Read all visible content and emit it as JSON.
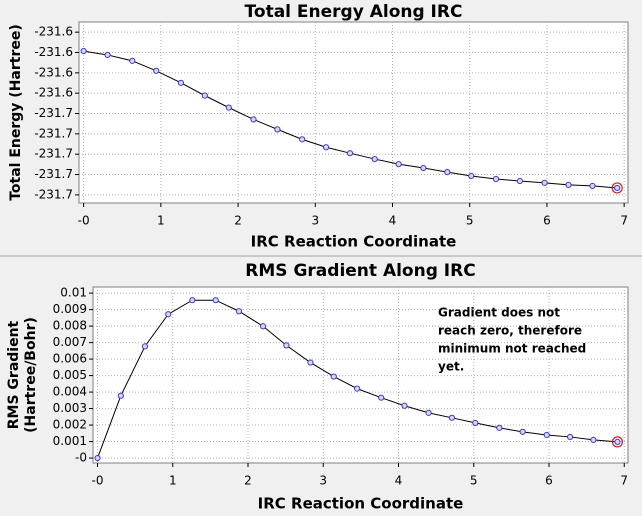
{
  "chart_data": [
    {
      "type": "line",
      "title": "Total Energy Along IRC",
      "xlabel": "IRC Reaction Coordinate",
      "ylabel": [
        "Total Energy (Hartree)"
      ],
      "x": [
        0,
        0.31,
        0.63,
        0.94,
        1.26,
        1.57,
        1.88,
        2.2,
        2.51,
        2.83,
        3.14,
        3.45,
        3.77,
        4.08,
        4.4,
        4.71,
        5.02,
        5.34,
        5.65,
        5.97,
        6.28,
        6.59,
        6.91
      ],
      "series": [
        {
          "color": "#000000",
          "marker_color": "#3a3ad0",
          "highlight_color": "#d02020",
          "values": [
            -231.6193,
            -231.6212,
            -231.6241,
            -231.629,
            -231.6349,
            -231.6412,
            -231.6471,
            -231.6529,
            -231.6578,
            -231.6627,
            -231.6666,
            -231.6695,
            -231.6724,
            -231.6749,
            -231.6768,
            -231.6788,
            -231.6807,
            -231.6822,
            -231.6832,
            -231.6841,
            -231.6851,
            -231.6856,
            -231.6866
          ]
        }
      ],
      "xlim": [
        -0.06,
        7.05
      ],
      "ylim": [
        -231.694,
        -231.605
      ],
      "xticks": [
        {
          "value": 0,
          "label": "-0"
        },
        1,
        2,
        3,
        4,
        5,
        6,
        7
      ],
      "yticks": [
        {
          "value": -231.61,
          "label": "-231.6"
        },
        {
          "value": -231.62,
          "label": "-231.6"
        },
        {
          "value": -231.63,
          "label": "-231.6"
        },
        {
          "value": -231.64,
          "label": "-231.6"
        },
        {
          "value": -231.65,
          "label": "-231.7"
        },
        {
          "value": -231.66,
          "label": "-231.7"
        },
        {
          "value": -231.67,
          "label": "-231.7"
        },
        {
          "value": -231.68,
          "label": "-231.7"
        },
        {
          "value": -231.69,
          "label": "-231.7"
        }
      ],
      "grid": true
    },
    {
      "type": "line",
      "title": "RMS Gradient Along IRC",
      "xlabel": "IRC Reaction Coordinate",
      "ylabel": [
        "RMS Gradient",
        "(Hartree/Bohr)"
      ],
      "annotation": [
        "Gradient does not",
        "reach zero, therefore",
        "minimum not reached",
        "yet."
      ],
      "x": [
        0,
        0.31,
        0.63,
        0.94,
        1.26,
        1.57,
        1.88,
        2.2,
        2.51,
        2.83,
        3.14,
        3.45,
        3.77,
        4.08,
        4.4,
        4.71,
        5.02,
        5.34,
        5.65,
        5.97,
        6.28,
        6.59,
        6.91
      ],
      "series": [
        {
          "color": "#000000",
          "marker_color": "#3a3ad0",
          "highlight_color": "#d02020",
          "values": [
            0,
            0.00378,
            0.00677,
            0.00872,
            0.00957,
            0.00957,
            0.0089,
            0.00799,
            0.00683,
            0.00579,
            0.00494,
            0.00421,
            0.00366,
            0.00317,
            0.00274,
            0.00244,
            0.00213,
            0.00183,
            0.00159,
            0.0014,
            0.00128,
            0.0011,
            0.00098
          ]
        }
      ],
      "xlim": [
        -0.06,
        7.05
      ],
      "ylim": [
        -0.0003,
        0.01037
      ],
      "xticks": [
        {
          "value": 0,
          "label": "-0"
        },
        1,
        2,
        3,
        4,
        5,
        6,
        7
      ],
      "yticks": [
        0.01,
        0.009,
        0.008,
        0.007,
        0.006,
        0.005,
        0.004,
        0.003,
        0.002,
        0.001,
        {
          "value": 0,
          "label": "-0"
        }
      ],
      "grid": true
    }
  ]
}
